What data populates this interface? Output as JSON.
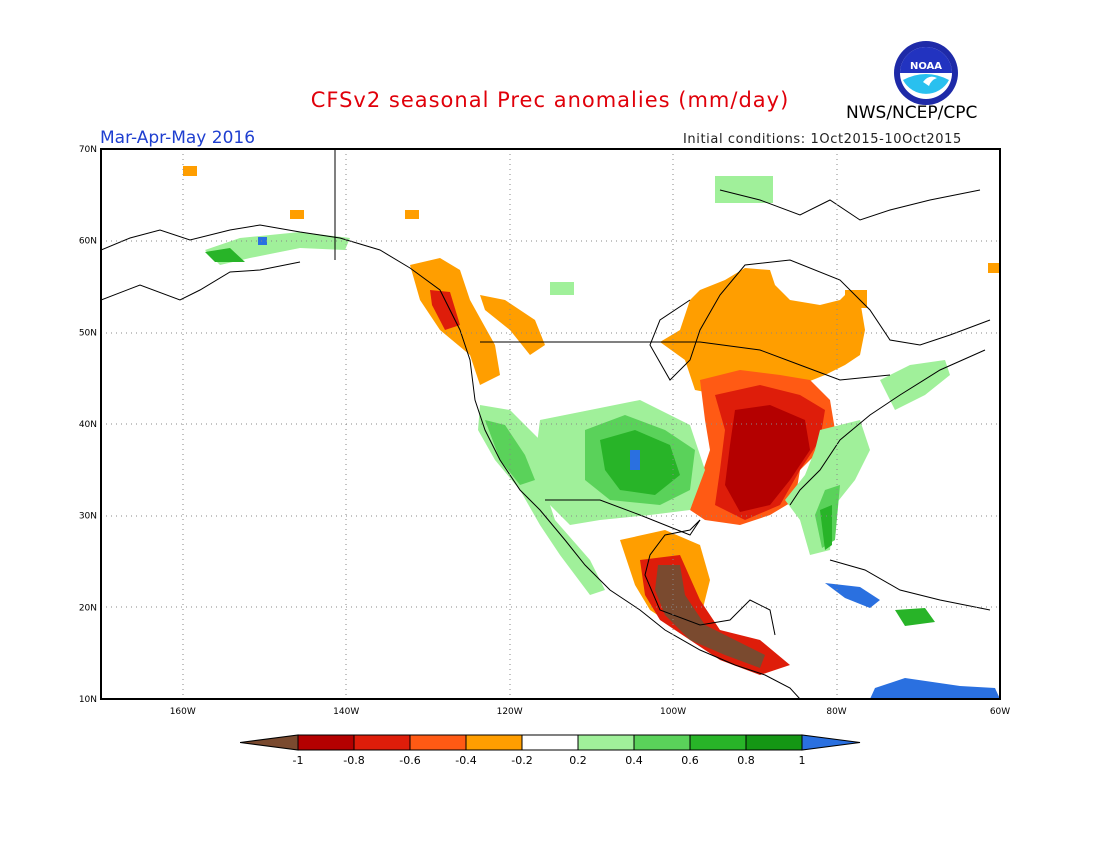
{
  "title": "CFSv2 seasonal Prec anomalies (mm/day)",
  "organization": "NWS/NCEP/CPC",
  "logo_text": "NOAA",
  "season": "Mar-Apr-May 2016",
  "initial_conditions": "Initial conditions: 1Oct2015-10Oct2015",
  "map": {
    "projection": "lat-lon",
    "lon_range": [
      -170,
      -60
    ],
    "lat_range": [
      10,
      70
    ],
    "lon_ticks": [
      "160W",
      "140W",
      "120W",
      "100W",
      "80W",
      "60W"
    ],
    "lat_ticks": [
      "10N",
      "20N",
      "30N",
      "40N",
      "50N",
      "60N",
      "70N"
    ],
    "grid": "dotted",
    "anomaly_regions": [
      {
        "region": "Great Lakes / Ontario",
        "category": "-0.4 to -0.2"
      },
      {
        "region": "Mississippi / Ohio Valley",
        "category": "-1 to -0.6"
      },
      {
        "region": "Southern Mexico",
        "category": "< -1"
      },
      {
        "region": "Southern Plains / Colorado",
        "category": "0.2 to 0.8"
      },
      {
        "region": "California / Baja coast",
        "category": "0.2 to 0.6"
      },
      {
        "region": "Southeast US coast / Florida",
        "category": "0.4 to 1"
      },
      {
        "region": "Pacific Northwest coast",
        "category": "-0.6 to -0.2"
      },
      {
        "region": "Caribbean / Greater Antilles",
        "category": "> 1"
      }
    ]
  },
  "colorbar": {
    "labels": [
      "-1",
      "-0.8",
      "-0.6",
      "-0.4",
      "-0.2",
      "0.2",
      "0.4",
      "0.6",
      "0.8",
      "1"
    ],
    "colors": [
      "#7a4a2f",
      "#b40000",
      "#de1d0a",
      "#ff5a14",
      "#ff9e00",
      "#ffffff",
      "#a0f09a",
      "#5ad25a",
      "#28b428",
      "#149614",
      "#2a70e0"
    ]
  }
}
